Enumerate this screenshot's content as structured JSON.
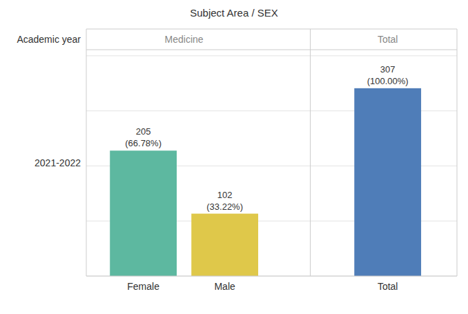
{
  "chart_data": {
    "type": "bar",
    "title": "Subject Area  /  SEX",
    "categories": [
      "Female",
      "Male",
      "Total"
    ],
    "values": [
      205,
      102,
      307
    ],
    "value_labels": [
      "205\n(66.78%)",
      "102\n(33.22%)",
      "307\n(100.00%)"
    ],
    "colors": [
      "#5db8a0",
      "#dfc84a",
      "#4f7db8"
    ],
    "ylim": [
      0,
      370
    ],
    "yticks": [
      0,
      90,
      180,
      270,
      360
    ],
    "grid": true,
    "data_labels": true,
    "tick_labels": "x",
    "annotations": [
      "Academic year",
      "Medicine",
      "Total",
      "2021-2022"
    ]
  }
}
